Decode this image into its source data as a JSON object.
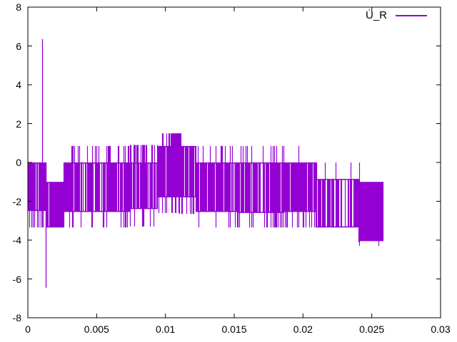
{
  "window": {
    "background": "#ffffff"
  },
  "colors": {
    "axis": "#000000",
    "background": "#ffffff",
    "series": "#9400d3"
  },
  "legend": {
    "label": "U̇_R"
  },
  "chart_data": {
    "type": "line",
    "title": "",
    "xlabel": "",
    "ylabel": "",
    "xlim": [
      0,
      0.03
    ],
    "ylim": [
      -8,
      8
    ],
    "grid": false,
    "legend_position": "top-right-inside",
    "x_tick_values": [
      0,
      0.005,
      0.01,
      0.015,
      0.02,
      0.025,
      0.03
    ],
    "x_tick_labels": [
      "0",
      "0.005",
      "0.01",
      "0.015",
      "0.02",
      "0.025",
      "0.03"
    ],
    "y_tick_values": [
      -8,
      -6,
      -4,
      -2,
      0,
      2,
      4,
      6,
      8
    ],
    "y_tick_labels": [
      "-8",
      "-6",
      "-4",
      "-2",
      "0",
      "2",
      "4",
      "6",
      "8"
    ],
    "series": [
      {
        "name": "U̇_R",
        "color": "#9400d3",
        "style": "dense-pwm"
      }
    ],
    "signal_end_x": 0.0258,
    "pwm_envelope_segments": [
      {
        "t0": 0.0,
        "t1": 0.0013,
        "top": 0.0,
        "bot": -2.5,
        "bspk": {
          "v": -3.35,
          "d": 0.25
        },
        "gap": 0.05
      },
      {
        "t0": 0.0013,
        "t1": 0.0026,
        "top": -1.0,
        "bot": -3.35,
        "bspk": {
          "v": -3.5,
          "d": 0.04
        },
        "gap": 0.04
      },
      {
        "t0": 0.0026,
        "t1": 0.0031,
        "top": 0.0,
        "bot": -2.55,
        "bspk": {
          "v": -3.35,
          "d": 0.15
        },
        "gap": 0.08
      },
      {
        "t0": 0.0031,
        "t1": 0.0074,
        "top": 0.0,
        "bot": -2.55,
        "tspk": {
          "v": 0.85,
          "d": 0.3
        },
        "bspk": {
          "v": -3.35,
          "d": 0.3
        },
        "gap": 0.22
      },
      {
        "t0": 0.0074,
        "t1": 0.0094,
        "top": 0.0,
        "bot": -2.4,
        "tspk": {
          "v": 0.9,
          "d": 0.55
        },
        "bspk": {
          "v": -3.3,
          "d": 0.2
        },
        "gap": 0.2
      },
      {
        "t0": 0.0094,
        "t1": 0.0104,
        "top": 0.85,
        "bot": -1.8,
        "tspk": {
          "v": 1.5,
          "d": 0.35
        },
        "bspk": {
          "v": -2.6,
          "d": 0.3
        },
        "gap": 0.15
      },
      {
        "t0": 0.0104,
        "t1": 0.011,
        "top": 1.5,
        "bot": -1.8,
        "bspk": {
          "v": -2.6,
          "d": 0.25
        },
        "gap": 0.1
      },
      {
        "t0": 0.011,
        "t1": 0.0122,
        "top": 0.85,
        "bot": -1.8,
        "tspk": {
          "v": 1.5,
          "d": 0.2
        },
        "bspk": {
          "v": -2.65,
          "d": 0.35
        },
        "gap": 0.25
      },
      {
        "t0": 0.0122,
        "t1": 0.0152,
        "top": 0.0,
        "bot": -2.55,
        "tspk": {
          "v": 0.85,
          "d": 0.2
        },
        "bspk": {
          "v": -3.35,
          "d": 0.1
        },
        "gap": 0.1
      },
      {
        "t0": 0.0152,
        "t1": 0.0186,
        "top": 0.0,
        "bot": -2.6,
        "tspk": {
          "v": 0.85,
          "d": 0.25
        },
        "bspk": {
          "v": -3.35,
          "d": 0.35
        },
        "gap": 0.28
      },
      {
        "t0": 0.0186,
        "t1": 0.0209,
        "top": 0.0,
        "bot": -2.55,
        "tspk": {
          "v": 0.85,
          "d": 0.04
        },
        "bspk": {
          "v": -3.35,
          "d": 0.3
        },
        "gap": 0.07
      },
      {
        "t0": 0.0209,
        "t1": 0.0241,
        "top": -0.85,
        "bot": -3.35,
        "tspk": {
          "v": 0.0,
          "d": 0.12
        },
        "bspk": {
          "v": -4.1,
          "d": 0.05
        },
        "gap": 0.3
      },
      {
        "t0": 0.0241,
        "t1": 0.0258,
        "top": -1.0,
        "bot": -4.05,
        "bspk": {
          "v": -4.3,
          "d": 0.05
        },
        "gap": 0.06
      }
    ],
    "impulses": [
      {
        "t": 0.00105,
        "from": 6.35,
        "to": -2.5
      },
      {
        "t": 0.00128,
        "from": 0.0,
        "to": -6.45
      }
    ]
  }
}
